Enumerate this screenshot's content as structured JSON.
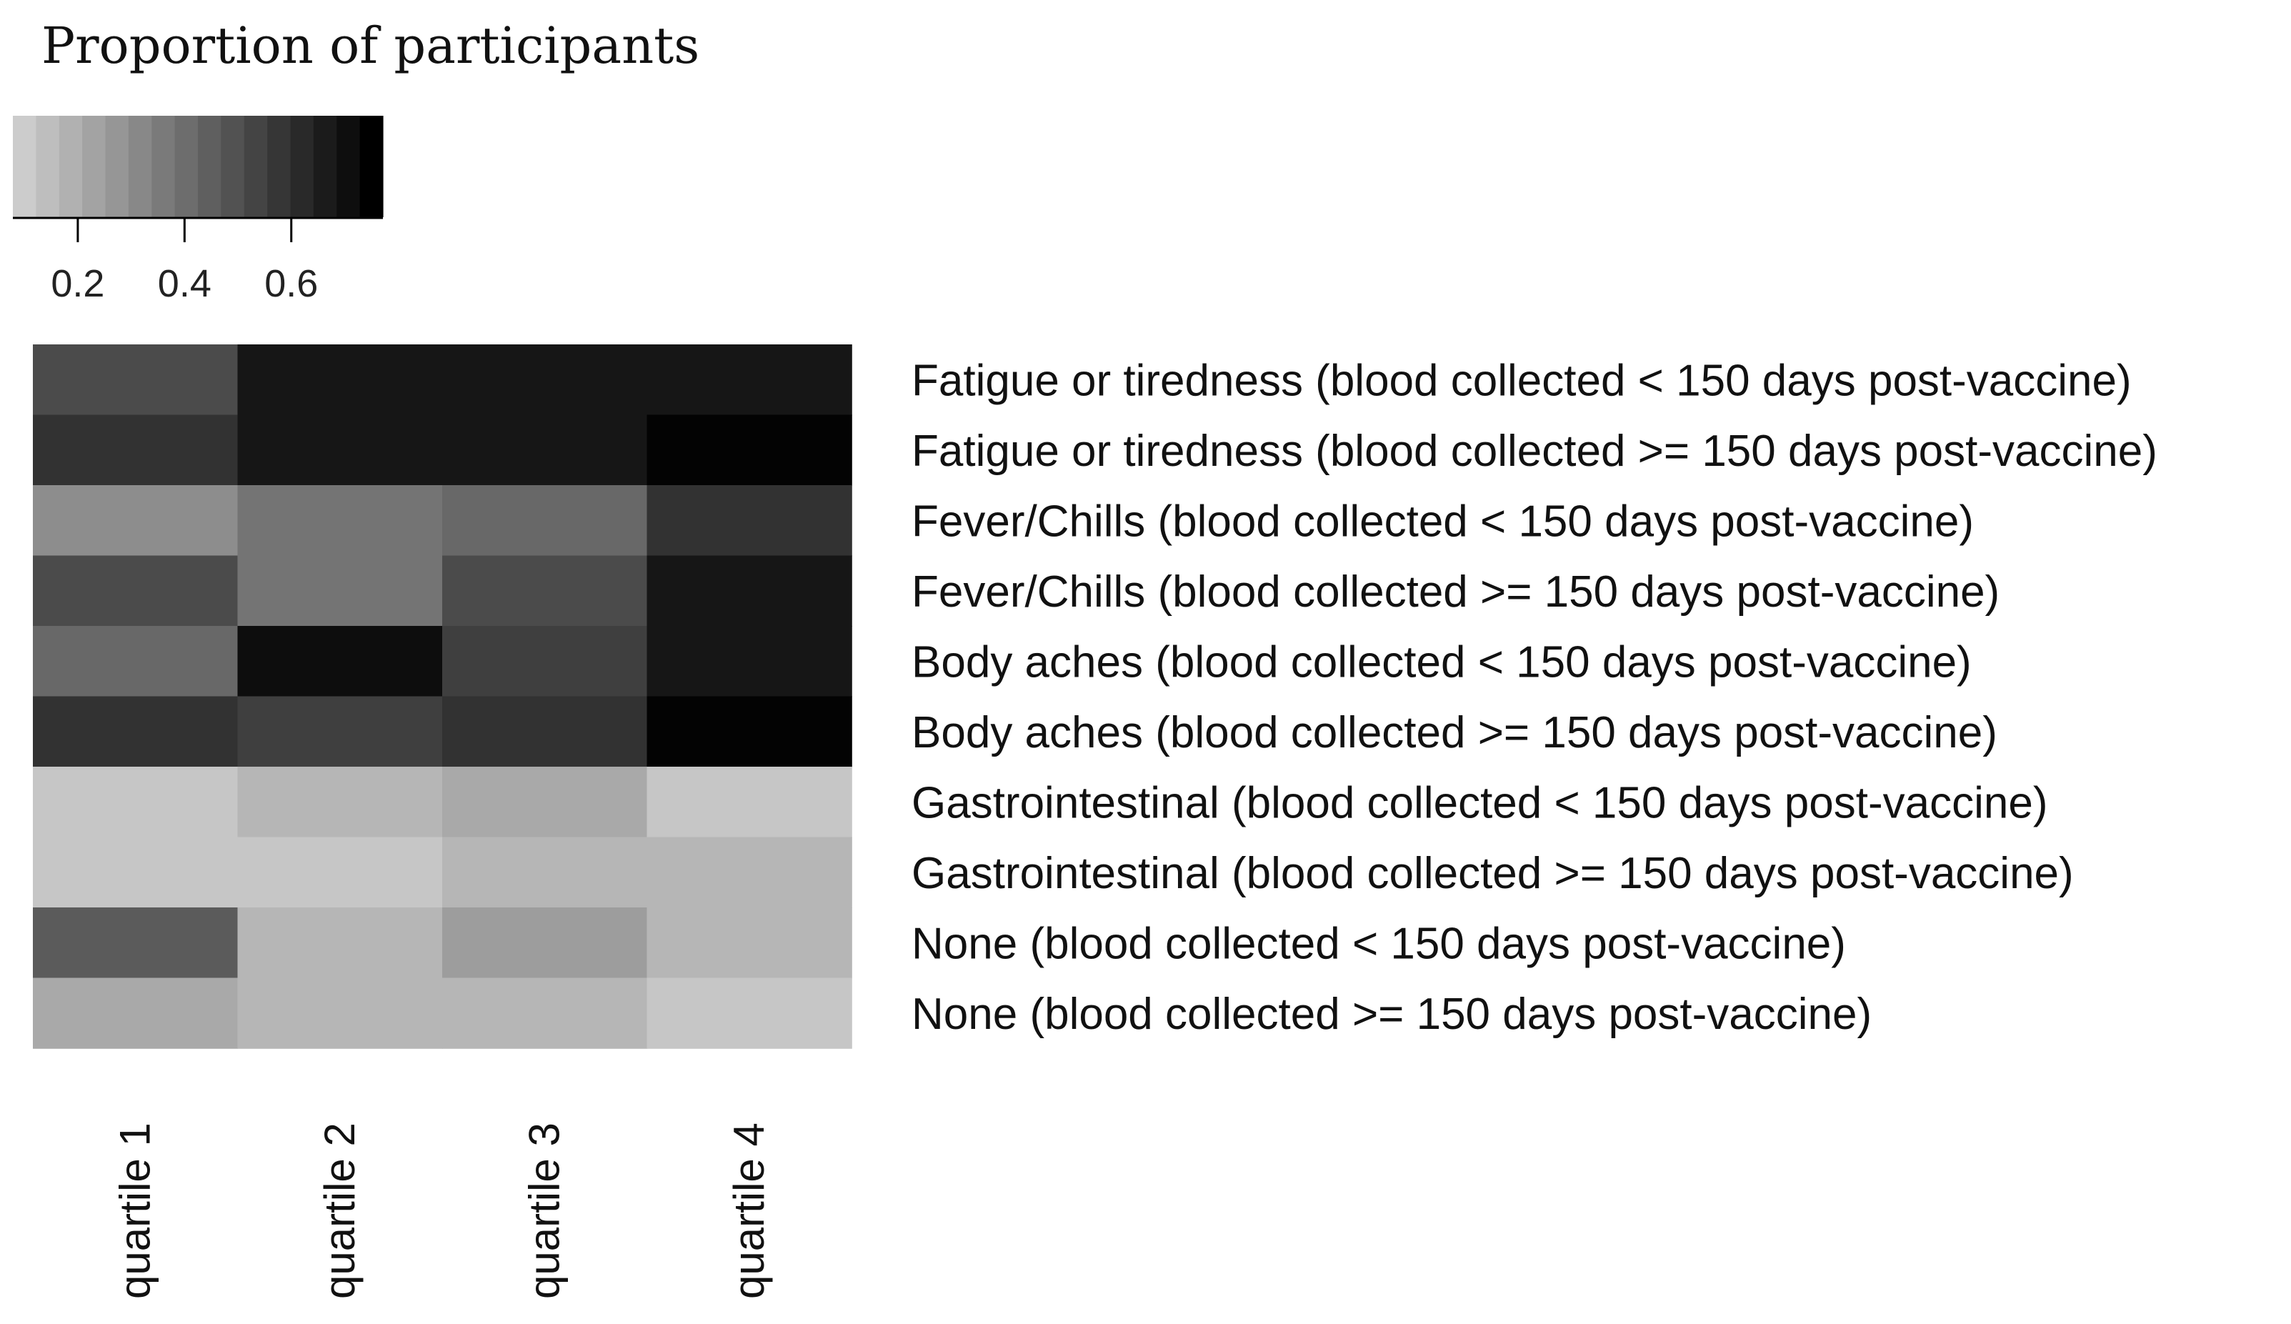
{
  "chart_data": {
    "type": "heatmap",
    "legend": {
      "title": "Proportion of participants",
      "range": [
        0.1,
        0.75
      ],
      "steps": 16,
      "ticks": [
        0.2,
        0.4,
        0.6
      ],
      "tick_labels": [
        "0.2",
        "0.4",
        "0.6"
      ],
      "placement": "top-left"
    },
    "columns": [
      "quartile 1",
      "quartile 2",
      "quartile 3",
      "quartile 4"
    ],
    "rows": [
      "Fatigue or tiredness (blood collected < 150 days post-vaccine)",
      "Fatigue or tiredness (blood collected >= 150 days post-vaccine)",
      "Fever/Chills (blood collected < 150 days post-vaccine)",
      "Fever/Chills (blood collected >= 150 days post-vaccine)",
      "Body aches (blood collected < 150 days post-vaccine)",
      "Body aches (blood collected >= 150 days post-vaccine)",
      "Gastrointestinal (blood collected < 150 days post-vaccine)",
      "Gastrointestinal (blood collected >= 150 days post-vaccine)",
      "None (blood collected < 150 days post-vaccine)",
      "None (blood collected >= 150 days post-vaccine)"
    ],
    "values": [
      [
        0.51,
        0.68,
        0.68,
        0.68
      ],
      [
        0.59,
        0.68,
        0.68,
        0.74
      ],
      [
        0.3,
        0.38,
        0.42,
        0.59
      ],
      [
        0.51,
        0.38,
        0.51,
        0.68
      ],
      [
        0.42,
        0.71,
        0.55,
        0.68
      ],
      [
        0.59,
        0.55,
        0.59,
        0.74
      ],
      [
        0.12,
        0.17,
        0.21,
        0.12
      ],
      [
        0.12,
        0.12,
        0.17,
        0.17
      ],
      [
        0.46,
        0.17,
        0.25,
        0.17
      ],
      [
        0.21,
        0.17,
        0.17,
        0.12
      ]
    ],
    "grid": false
  }
}
